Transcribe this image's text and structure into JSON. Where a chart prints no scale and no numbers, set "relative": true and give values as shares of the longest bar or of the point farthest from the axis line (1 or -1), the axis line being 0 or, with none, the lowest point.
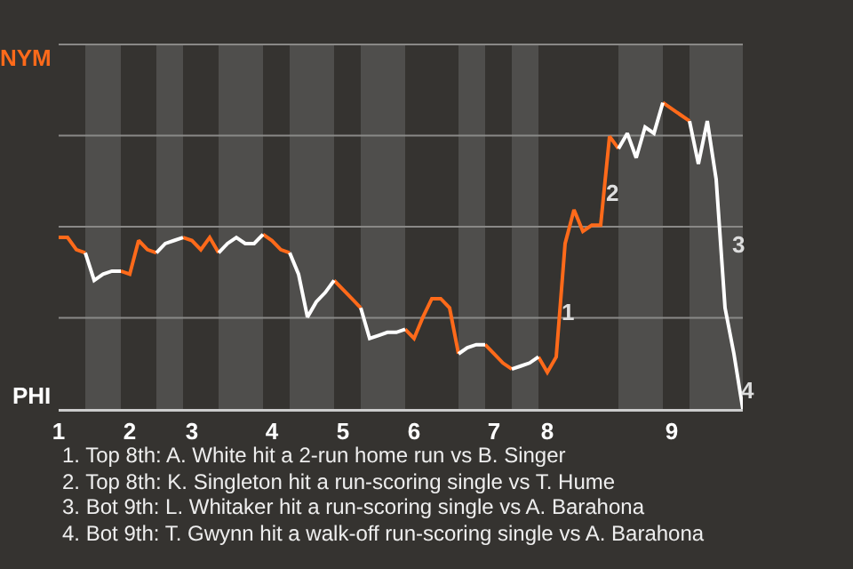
{
  "chart_data": {
    "type": "line",
    "relative": true,
    "categories": [
      "1",
      null,
      null,
      null,
      null,
      null,
      null,
      null,
      "2",
      null,
      null,
      null,
      null,
      null,
      null,
      "3",
      null,
      null,
      null,
      null,
      null,
      null,
      null,
      null,
      "4",
      null,
      null,
      null,
      null,
      null,
      null,
      null,
      "5",
      null,
      null,
      null,
      null,
      null,
      null,
      null,
      "6",
      null,
      null,
      null,
      null,
      null,
      null,
      null,
      null,
      "7",
      null,
      null,
      null,
      null,
      null,
      "8",
      null,
      null,
      null,
      null,
      null,
      null,
      null,
      null,
      null,
      null,
      null,
      null,
      null,
      "9",
      null,
      null,
      null,
      null,
      null,
      null,
      null,
      null
    ],
    "grid": true,
    "marker": "none",
    "line_style": "solid",
    "series": [
      {
        "color": "#ff6a1a",
        "values": [
          0.56,
          0.56,
          0.52,
          0.51,
          null,
          null,
          null,
          0.45,
          0.44,
          0.55,
          0.52,
          0.51,
          null,
          null,
          0.56,
          0.55,
          0.52,
          0.56,
          0.51,
          null,
          null,
          null,
          null,
          0.57,
          0.55,
          0.52,
          0.51,
          null,
          null,
          null,
          null,
          0.42,
          0.39,
          0.36,
          0.33,
          null,
          null,
          null,
          null,
          0.26,
          0.23,
          0.3,
          0.36,
          0.36,
          0.33,
          0.18,
          null,
          null,
          0.21,
          0.18,
          0.15,
          0.13,
          null,
          null,
          0.17,
          0.12,
          0.17,
          0.54,
          0.65,
          0.58,
          0.6,
          0.6,
          0.89,
          0.85,
          null,
          null,
          null,
          null,
          1,
          0.98,
          0.96,
          0.94,
          null,
          null,
          null,
          null,
          null,
          null
        ]
      },
      {
        "color": "#ffffff",
        "values": [
          null,
          null,
          null,
          0.51,
          0.42,
          0.44,
          0.45,
          0.45,
          null,
          null,
          null,
          0.51,
          0.54,
          0.55,
          0.56,
          null,
          null,
          null,
          0.51,
          0.54,
          0.56,
          0.54,
          0.54,
          0.57,
          null,
          null,
          0.51,
          0.44,
          0.3,
          0.35,
          0.38,
          0.42,
          null,
          null,
          0.33,
          0.23,
          0.24,
          0.25,
          0.25,
          0.26,
          null,
          null,
          null,
          null,
          null,
          0.18,
          0.2,
          0.21,
          0.21,
          null,
          null,
          0.13,
          0.14,
          0.15,
          0.17,
          null,
          null,
          null,
          null,
          null,
          null,
          null,
          null,
          0.85,
          0.9,
          0.82,
          0.92,
          0.9,
          1,
          null,
          null,
          0.94,
          0.8,
          0.94,
          0.75,
          0.33,
          0.18,
          0
        ]
      }
    ],
    "annotations": [
      "NYM",
      "PHI",
      "1",
      "2",
      "3",
      "4",
      "1. Top 8th: A. White hit a 2-run home run vs B. Singer",
      "2. Top 8th: K. Singleton hit a run-scoring single vs T. Hume",
      "3. Bot 9th: L. Whitaker hit a run-scoring single vs A. Barahona",
      "4. Bot 9th: T. Gwynn hit a walk-off run-scoring single vs A. Barahona"
    ]
  }
}
